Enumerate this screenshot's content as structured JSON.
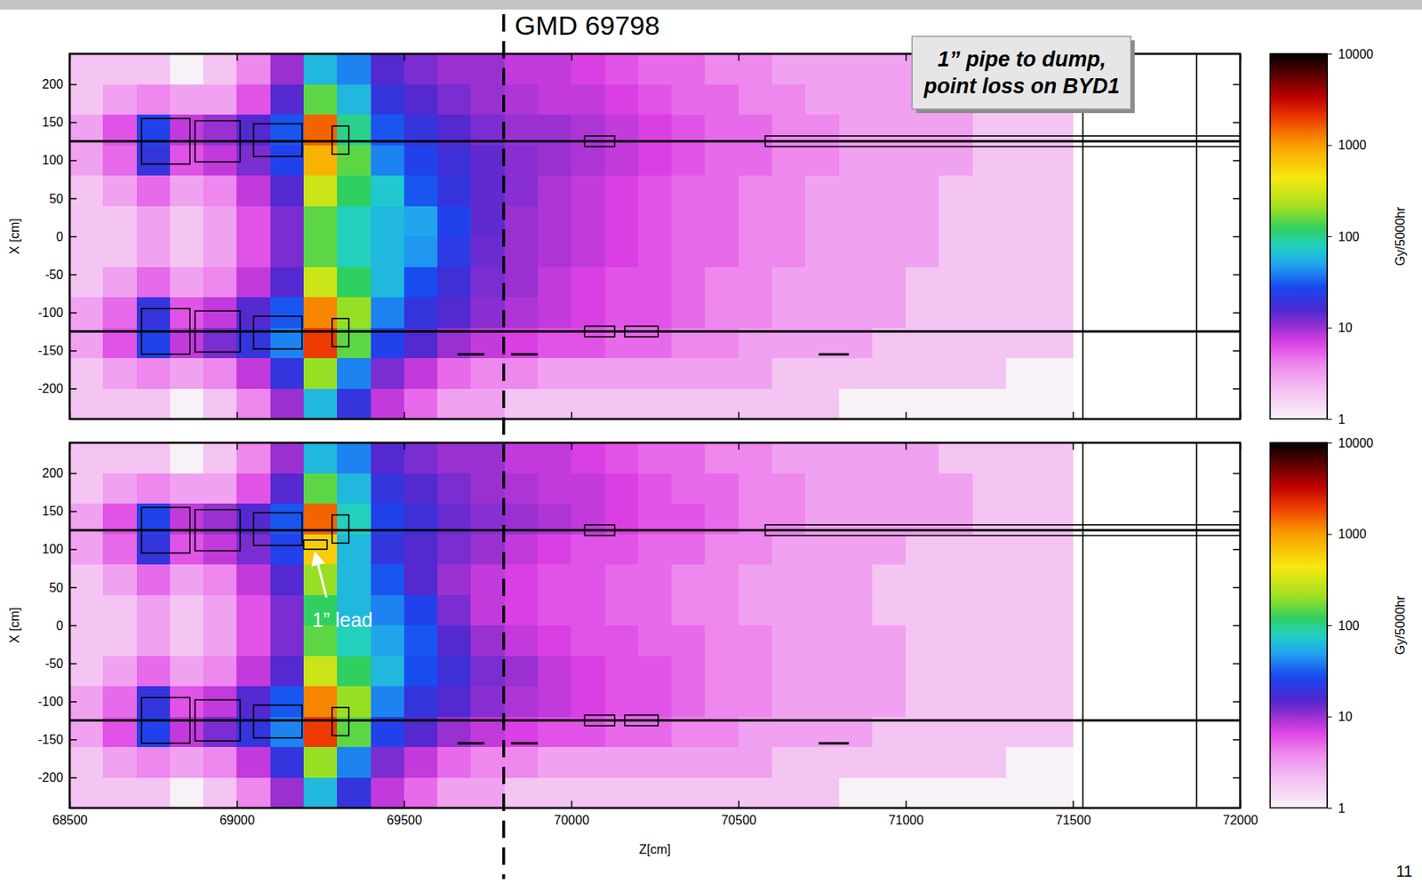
{
  "chart_data": {
    "type": "heatmap",
    "xlabel": "Z[cm]",
    "ylabel": "X [cm]",
    "xlim": [
      68500,
      72000
    ],
    "xticks": [
      68500,
      69000,
      69500,
      70000,
      70500,
      71000,
      71500,
      72000
    ],
    "ylim": [
      -240,
      240
    ],
    "yticks": [
      -200,
      -150,
      -100,
      -50,
      0,
      50,
      100,
      150,
      200
    ],
    "z_bins": [
      68500,
      68600,
      68700,
      68800,
      68900,
      69000,
      69100,
      69200,
      69300,
      69400,
      69500,
      69600,
      69700,
      69800,
      69900,
      70000,
      70100,
      70200,
      70300,
      70400,
      70500,
      70600,
      70700,
      70800,
      70900,
      71000,
      71100,
      71200,
      71300,
      71400,
      71500
    ],
    "x_bins": [
      240,
      200,
      160,
      120,
      80,
      40,
      0,
      -40,
      -80,
      -120,
      -160,
      -200,
      -240
    ],
    "colorbar": {
      "label": "Gy/5000hr",
      "range": [
        1,
        10000
      ],
      "ticks": [
        1,
        10,
        100,
        1000,
        10000
      ]
    },
    "marker_line": {
      "label": "GMD 69798",
      "z": 69798
    },
    "annotation": [
      "1” pipe to dump,",
      "point loss on BYD1"
    ],
    "page_number": "11",
    "panels": [
      {
        "cells": [
          [
            2,
            2,
            2,
            1,
            2,
            4,
            10,
            60,
            40,
            15,
            12,
            10,
            10,
            8,
            8,
            7,
            6,
            5,
            5,
            4,
            4,
            3,
            3,
            3,
            3,
            3,
            2,
            2,
            2,
            2
          ],
          [
            2,
            3,
            4,
            3,
            3,
            6,
            15,
            150,
            60,
            20,
            15,
            12,
            10,
            9,
            8,
            8,
            7,
            6,
            5,
            5,
            4,
            4,
            3,
            3,
            3,
            3,
            3,
            2,
            2,
            2
          ],
          [
            3,
            6,
            25,
            8,
            10,
            15,
            30,
            1500,
            100,
            30,
            20,
            15,
            12,
            10,
            10,
            9,
            8,
            7,
            6,
            5,
            5,
            4,
            4,
            3,
            3,
            3,
            3,
            2,
            2,
            2
          ],
          [
            3,
            5,
            20,
            6,
            8,
            12,
            25,
            800,
            150,
            40,
            25,
            18,
            14,
            11,
            10,
            9,
            8,
            7,
            6,
            5,
            5,
            4,
            4,
            3,
            3,
            3,
            3,
            2,
            2,
            2
          ],
          [
            2,
            3,
            5,
            3,
            4,
            8,
            15,
            300,
            120,
            70,
            30,
            20,
            14,
            11,
            9,
            8,
            7,
            6,
            5,
            5,
            4,
            4,
            3,
            3,
            3,
            3,
            2,
            2,
            2,
            2
          ],
          [
            2,
            2,
            3,
            2,
            3,
            6,
            12,
            150,
            80,
            60,
            50,
            25,
            14,
            10,
            9,
            8,
            7,
            6,
            5,
            5,
            4,
            4,
            3,
            3,
            3,
            3,
            2,
            2,
            2,
            2
          ],
          [
            2,
            2,
            3,
            2,
            3,
            6,
            12,
            150,
            80,
            60,
            45,
            22,
            13,
            10,
            9,
            8,
            7,
            6,
            5,
            5,
            4,
            4,
            3,
            3,
            3,
            3,
            2,
            2,
            2,
            2
          ],
          [
            2,
            3,
            5,
            3,
            4,
            8,
            15,
            300,
            120,
            60,
            28,
            18,
            12,
            10,
            8,
            7,
            6,
            6,
            5,
            4,
            4,
            3,
            3,
            3,
            3,
            2,
            2,
            2,
            2,
            2
          ],
          [
            3,
            5,
            20,
            6,
            8,
            15,
            30,
            1200,
            200,
            40,
            20,
            15,
            11,
            9,
            8,
            7,
            6,
            6,
            5,
            4,
            4,
            3,
            3,
            3,
            3,
            2,
            2,
            2,
            2,
            2
          ],
          [
            3,
            6,
            25,
            8,
            12,
            20,
            40,
            2000,
            150,
            25,
            15,
            10,
            8,
            7,
            6,
            6,
            5,
            5,
            4,
            4,
            3,
            3,
            3,
            3,
            2,
            2,
            2,
            2,
            2,
            2
          ],
          [
            2,
            3,
            4,
            3,
            4,
            8,
            20,
            200,
            40,
            12,
            8,
            5,
            4,
            4,
            3,
            3,
            3,
            3,
            3,
            3,
            3,
            2,
            2,
            2,
            2,
            2,
            2,
            2,
            1,
            1
          ],
          [
            2,
            2,
            2,
            1,
            2,
            4,
            10,
            60,
            20,
            8,
            5,
            3,
            3,
            2,
            2,
            2,
            2,
            2,
            2,
            2,
            2,
            2,
            2,
            1,
            1,
            1,
            1,
            1,
            1,
            1
          ]
        ],
        "geometry": {
          "boxes": [
            [
              68715,
              68860,
              95,
              155
            ],
            [
              68875,
              69010,
              98,
              152
            ],
            [
              69050,
              69195,
              105,
              148
            ],
            [
              69285,
              69335,
              108,
              145
            ],
            [
              70040,
              70130,
              118,
              132
            ],
            [
              70580,
              72000,
              118,
              132
            ],
            [
              68715,
              68860,
              -155,
              -95
            ],
            [
              68875,
              69010,
              -152,
              -98
            ],
            [
              69050,
              69195,
              -148,
              -105
            ],
            [
              69285,
              69335,
              -145,
              -108
            ],
            [
              70040,
              70130,
              -132,
              -118
            ],
            [
              70160,
              70260,
              -132,
              -118
            ]
          ],
          "lines": [
            [
              68500,
              72000,
              125
            ],
            [
              68500,
              72000,
              -125
            ],
            [
              69660,
              69740,
              -155
            ],
            [
              69820,
              69900,
              -155
            ],
            [
              70740,
              70830,
              -155
            ]
          ],
          "vlines": [
            71530,
            71870
          ]
        }
      },
      {
        "cells": [
          [
            2,
            2,
            2,
            1,
            2,
            4,
            10,
            60,
            40,
            15,
            12,
            10,
            10,
            8,
            8,
            7,
            6,
            5,
            5,
            4,
            4,
            3,
            3,
            3,
            3,
            3,
            2,
            2,
            2,
            2
          ],
          [
            2,
            3,
            4,
            3,
            3,
            6,
            15,
            150,
            60,
            20,
            15,
            12,
            10,
            9,
            8,
            8,
            7,
            6,
            5,
            5,
            4,
            4,
            3,
            3,
            3,
            3,
            3,
            2,
            2,
            2
          ],
          [
            3,
            6,
            25,
            8,
            10,
            15,
            30,
            1500,
            80,
            25,
            18,
            13,
            11,
            10,
            9,
            8,
            7,
            6,
            6,
            5,
            4,
            4,
            3,
            3,
            3,
            3,
            3,
            2,
            2,
            2
          ],
          [
            3,
            5,
            20,
            6,
            8,
            12,
            25,
            600,
            60,
            20,
            15,
            12,
            10,
            8,
            7,
            6,
            6,
            5,
            5,
            4,
            4,
            3,
            3,
            3,
            3,
            2,
            2,
            2,
            2,
            2
          ],
          [
            2,
            3,
            5,
            3,
            4,
            8,
            15,
            200,
            60,
            30,
            15,
            10,
            8,
            7,
            6,
            6,
            5,
            5,
            4,
            4,
            3,
            3,
            3,
            3,
            2,
            2,
            2,
            2,
            2,
            2
          ],
          [
            2,
            2,
            3,
            2,
            3,
            6,
            12,
            120,
            60,
            40,
            25,
            12,
            8,
            7,
            6,
            6,
            5,
            5,
            4,
            4,
            3,
            3,
            3,
            3,
            2,
            2,
            2,
            2,
            2,
            2
          ],
          [
            2,
            2,
            3,
            2,
            3,
            6,
            12,
            150,
            80,
            50,
            30,
            15,
            10,
            8,
            7,
            6,
            6,
            5,
            5,
            4,
            4,
            3,
            3,
            3,
            3,
            2,
            2,
            2,
            2,
            2
          ],
          [
            2,
            3,
            5,
            3,
            4,
            8,
            15,
            300,
            120,
            60,
            28,
            18,
            12,
            10,
            8,
            7,
            6,
            6,
            5,
            4,
            4,
            3,
            3,
            3,
            3,
            2,
            2,
            2,
            2,
            2
          ],
          [
            3,
            5,
            20,
            6,
            8,
            15,
            30,
            1200,
            200,
            40,
            20,
            15,
            11,
            9,
            8,
            7,
            6,
            6,
            5,
            4,
            4,
            3,
            3,
            3,
            3,
            2,
            2,
            2,
            2,
            2
          ],
          [
            3,
            6,
            25,
            8,
            12,
            20,
            40,
            2000,
            150,
            25,
            15,
            10,
            8,
            7,
            6,
            6,
            5,
            5,
            4,
            4,
            3,
            3,
            3,
            3,
            2,
            2,
            2,
            2,
            2,
            2
          ],
          [
            2,
            3,
            4,
            3,
            4,
            8,
            20,
            200,
            40,
            12,
            8,
            5,
            4,
            4,
            3,
            3,
            3,
            3,
            3,
            3,
            3,
            2,
            2,
            2,
            2,
            2,
            2,
            2,
            1,
            1
          ],
          [
            2,
            2,
            2,
            1,
            2,
            4,
            10,
            60,
            20,
            8,
            5,
            3,
            3,
            2,
            2,
            2,
            2,
            2,
            2,
            2,
            2,
            2,
            2,
            1,
            1,
            1,
            1,
            1,
            1,
            1
          ]
        ],
        "geometry": {
          "boxes": [
            [
              68715,
              68860,
              95,
              155
            ],
            [
              68875,
              69010,
              98,
              152
            ],
            [
              69050,
              69195,
              105,
              148
            ],
            [
              69285,
              69335,
              108,
              145
            ],
            [
              70040,
              70130,
              118,
              132
            ],
            [
              70580,
              72000,
              118,
              132
            ],
            [
              68715,
              68860,
              -155,
              -95
            ],
            [
              68875,
              69010,
              -152,
              -98
            ],
            [
              69050,
              69195,
              -148,
              -105
            ],
            [
              69285,
              69335,
              -145,
              -108
            ],
            [
              70040,
              70130,
              -132,
              -118
            ],
            [
              70160,
              70260,
              -132,
              -118
            ]
          ],
          "lines": [
            [
              68500,
              72000,
              125
            ],
            [
              68500,
              72000,
              -125
            ],
            [
              69660,
              69740,
              -155
            ],
            [
              69820,
              69900,
              -155
            ],
            [
              70740,
              70830,
              -155
            ]
          ],
          "vlines": [
            71530,
            71870
          ],
          "lead": [
            69200,
            69270,
            100,
            112
          ]
        },
        "annotation": "1” lead"
      }
    ]
  }
}
